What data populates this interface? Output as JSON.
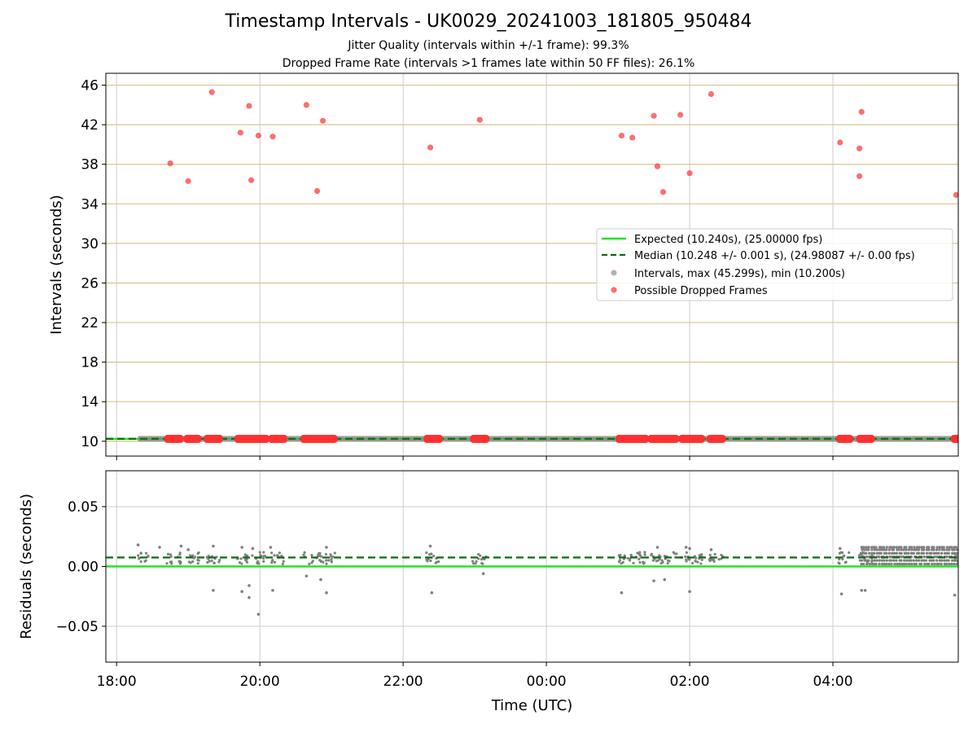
{
  "figure": {
    "title": "Timestamp Intervals - UK0029_20241003_181805_950484",
    "subtitle_1": "Jitter Quality (intervals within +/-1 frame): 99.3%",
    "subtitle_2": "Dropped Frame Rate (intervals >1 frames late within 50 FF files): 26.1%"
  },
  "colors": {
    "expected": "#22e322",
    "median": "#0a6b0a",
    "intervals": "#808080",
    "dropped": "#ff3030",
    "gridline_top": "#d8c58c",
    "gridline": "#cccccc"
  },
  "chart_data": [
    {
      "type": "scatter",
      "panel": "top",
      "xlabel": "",
      "ylabel": "Intervals (seconds)",
      "x_unit": "hours since 18:00 UTC (time axis)",
      "xlim": [
        -0.15,
        11.75
      ],
      "ylim": [
        8.5,
        47.2
      ],
      "yticks": [
        10,
        14,
        18,
        22,
        26,
        30,
        34,
        38,
        42,
        46
      ],
      "grid": "horizontal lines at y ticks, vertical lines at x ticks",
      "legend": {
        "placement": "center-right",
        "entries": [
          "Expected (10.240s), (25.00000 fps)",
          "Median (10.248 +/- 0.001 s), (24.98087 +/- 0.00 fps)",
          "Intervals, max (45.299s), min (10.200s)",
          "Possible Dropped Frames"
        ]
      },
      "expected_value": 10.24,
      "median_value": 10.248,
      "intervals_range": [
        0.3,
        11.75
      ],
      "dropped_high": [
        {
          "x": 0.75,
          "y": 38.1
        },
        {
          "x": 1.0,
          "y": 36.3
        },
        {
          "x": 1.33,
          "y": 45.3
        },
        {
          "x": 1.73,
          "y": 41.2
        },
        {
          "x": 1.85,
          "y": 43.9
        },
        {
          "x": 1.88,
          "y": 36.4
        },
        {
          "x": 1.98,
          "y": 40.9
        },
        {
          "x": 2.18,
          "y": 40.8
        },
        {
          "x": 2.65,
          "y": 44.0
        },
        {
          "x": 2.8,
          "y": 35.3
        },
        {
          "x": 2.88,
          "y": 42.4
        },
        {
          "x": 4.38,
          "y": 39.7
        },
        {
          "x": 5.07,
          "y": 42.5
        },
        {
          "x": 7.05,
          "y": 40.9
        },
        {
          "x": 7.2,
          "y": 40.7
        },
        {
          "x": 7.5,
          "y": 42.9
        },
        {
          "x": 7.55,
          "y": 37.8
        },
        {
          "x": 7.63,
          "y": 35.2
        },
        {
          "x": 7.87,
          "y": 43.0
        },
        {
          "x": 8.0,
          "y": 37.1
        },
        {
          "x": 8.3,
          "y": 45.1
        },
        {
          "x": 10.1,
          "y": 40.2
        },
        {
          "x": 10.37,
          "y": 39.6
        },
        {
          "x": 10.37,
          "y": 36.8
        },
        {
          "x": 10.4,
          "y": 43.3
        },
        {
          "x": 11.72,
          "y": 34.9
        }
      ],
      "dropped_low_ranges": [
        [
          0.7,
          0.9
        ],
        [
          0.97,
          1.15
        ],
        [
          1.25,
          1.45
        ],
        [
          1.68,
          2.1
        ],
        [
          2.15,
          2.35
        ],
        [
          2.6,
          3.05
        ],
        [
          4.32,
          4.52
        ],
        [
          4.97,
          5.17
        ],
        [
          7.0,
          7.4
        ],
        [
          7.45,
          7.82
        ],
        [
          7.88,
          8.18
        ],
        [
          8.27,
          8.47
        ],
        [
          10.08,
          10.25
        ],
        [
          10.36,
          10.55
        ],
        [
          11.68,
          11.75
        ]
      ]
    },
    {
      "type": "scatter",
      "panel": "bottom",
      "xlabel": "Time (UTC)",
      "ylabel": "Residuals (seconds)",
      "xlim": [
        -0.15,
        11.75
      ],
      "ylim": [
        -0.08,
        0.08
      ],
      "xticks": [
        {
          "x": 0,
          "label": "18:00"
        },
        {
          "x": 2,
          "label": "20:00"
        },
        {
          "x": 4,
          "label": "22:00"
        },
        {
          "x": 6,
          "label": "00:00"
        },
        {
          "x": 8,
          "label": "02:00"
        },
        {
          "x": 10,
          "label": "04:00"
        }
      ],
      "yticks": [
        {
          "y": 0.05,
          "label": "0.05"
        },
        {
          "y": 0.0,
          "label": "0.00"
        },
        {
          "y": -0.05,
          "label": "−0.05"
        }
      ],
      "grid": "on",
      "expected_value": 0.0,
      "median_value": 0.0075,
      "outliers": [
        {
          "x": 0.3,
          "y": 0.018
        },
        {
          "x": 0.6,
          "y": 0.016
        },
        {
          "x": 0.9,
          "y": 0.017
        },
        {
          "x": 1.0,
          "y": 0.014
        },
        {
          "x": 1.35,
          "y": 0.017
        },
        {
          "x": 1.35,
          "y": -0.02
        },
        {
          "x": 1.75,
          "y": 0.016
        },
        {
          "x": 1.75,
          "y": -0.021
        },
        {
          "x": 1.85,
          "y": -0.026
        },
        {
          "x": 1.85,
          "y": -0.016
        },
        {
          "x": 1.9,
          "y": 0.015
        },
        {
          "x": 1.98,
          "y": -0.04
        },
        {
          "x": 2.15,
          "y": 0.016
        },
        {
          "x": 2.18,
          "y": -0.02
        },
        {
          "x": 2.65,
          "y": -0.008
        },
        {
          "x": 2.85,
          "y": -0.011
        },
        {
          "x": 2.93,
          "y": 0.016
        },
        {
          "x": 2.93,
          "y": -0.022
        },
        {
          "x": 4.38,
          "y": 0.017
        },
        {
          "x": 4.4,
          "y": -0.022
        },
        {
          "x": 5.12,
          "y": -0.006
        },
        {
          "x": 7.05,
          "y": -0.022
        },
        {
          "x": 7.5,
          "y": -0.012
        },
        {
          "x": 7.65,
          "y": -0.011
        },
        {
          "x": 7.55,
          "y": 0.016
        },
        {
          "x": 7.95,
          "y": 0.016
        },
        {
          "x": 8.0,
          "y": 0.015
        },
        {
          "x": 8.0,
          "y": -0.021
        },
        {
          "x": 8.3,
          "y": 0.014
        },
        {
          "x": 10.1,
          "y": 0.015
        },
        {
          "x": 10.12,
          "y": -0.023
        },
        {
          "x": 10.4,
          "y": -0.02
        },
        {
          "x": 10.45,
          "y": -0.02
        },
        {
          "x": 11.7,
          "y": -0.024
        }
      ],
      "dense_band": {
        "x_range": [
          10.4,
          11.75
        ],
        "y_values": [
          0.002,
          0.005,
          0.008,
          0.011,
          0.014,
          0.016
        ]
      }
    }
  ]
}
